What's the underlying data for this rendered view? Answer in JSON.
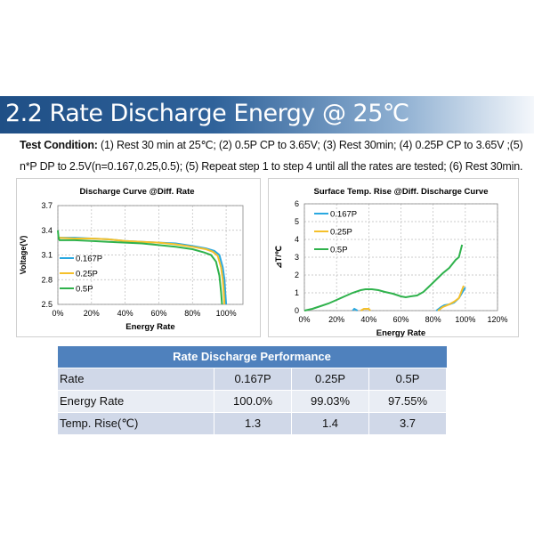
{
  "title": "2.2 Rate Discharge Energy @ 25℃",
  "condition": {
    "label": "Test Condition:",
    "line1": " (1) Rest 30 min at 25℃; (2) 0.5P CP to 3.65V; (3) Rest 30min; (4) 0.25P CP to 3.65V ;(5)",
    "line2": "n*P DP to 2.5V(n=0.167,0.25,0.5); (5) Repeat step 1 to step 4 until all the rates are tested; (6) Rest 30min."
  },
  "colors": {
    "0.167P": "#29a8e0",
    "0.25P": "#f5c02a",
    "0.5P": "#2fb24c"
  },
  "chart_data": [
    {
      "type": "line",
      "title": "Discharge Curve @Diff. Rate",
      "xlabel": "Energy Rate",
      "ylabel": "Voltage(V)",
      "xlim": [
        0,
        110
      ],
      "ylim": [
        2.5,
        3.7
      ],
      "xticks": [
        "0%",
        "20%",
        "40%",
        "60%",
        "80%",
        "100%"
      ],
      "yticks": [
        "2.5",
        "2.8",
        "3.1",
        "3.4",
        "3.7"
      ],
      "grid": true,
      "legend": "left",
      "series": [
        {
          "name": "0.167P",
          "x": [
            0,
            10,
            20,
            30,
            40,
            50,
            60,
            70,
            80,
            88,
            93,
            96,
            98,
            99,
            99.5,
            100
          ],
          "y": [
            3.31,
            3.31,
            3.3,
            3.29,
            3.27,
            3.26,
            3.25,
            3.24,
            3.21,
            3.18,
            3.15,
            3.1,
            2.95,
            2.8,
            2.65,
            2.5
          ]
        },
        {
          "name": "0.25P",
          "x": [
            0,
            10,
            20,
            30,
            40,
            50,
            60,
            70,
            80,
            88,
            92,
            95,
            97,
            98,
            98.6,
            99
          ],
          "y": [
            3.31,
            3.3,
            3.3,
            3.29,
            3.27,
            3.26,
            3.25,
            3.23,
            3.2,
            3.17,
            3.14,
            3.09,
            2.95,
            2.8,
            2.65,
            2.5
          ]
        },
        {
          "name": "0.5P",
          "x": [
            0,
            0.5,
            1,
            10,
            20,
            30,
            40,
            50,
            60,
            70,
            80,
            87,
            91,
            94,
            96,
            97,
            97.55
          ],
          "y": [
            3.4,
            3.3,
            3.28,
            3.28,
            3.27,
            3.26,
            3.25,
            3.24,
            3.22,
            3.2,
            3.17,
            3.13,
            3.1,
            3.02,
            2.85,
            2.65,
            2.5
          ]
        }
      ]
    },
    {
      "type": "line",
      "title": "Surface Temp. Rise @Diff. Discharge Curve",
      "xlabel": "Energy Rate",
      "ylabel": "⊿T/℃",
      "xlim": [
        0,
        120
      ],
      "ylim": [
        0,
        6
      ],
      "xticks": [
        "0%",
        "20%",
        "40%",
        "60%",
        "80%",
        "100%",
        "120%"
      ],
      "yticks": [
        "0",
        "1",
        "2",
        "3",
        "4",
        "5",
        "6"
      ],
      "grid": true,
      "legend": "top-left",
      "series": [
        {
          "name": "0.167P",
          "segments": [
            {
              "x": [
                30,
                31,
                33
              ],
              "y": [
                0,
                0.1,
                0
              ]
            },
            {
              "x": [
                82,
                85,
                87,
                90,
                93,
                96,
                100
              ],
              "y": [
                0,
                0.2,
                0.3,
                0.35,
                0.45,
                0.7,
                1.3
              ]
            }
          ]
        },
        {
          "name": "0.25P",
          "segments": [
            {
              "x": [
                35,
                37,
                40,
                41
              ],
              "y": [
                0,
                0.1,
                0.1,
                0
              ]
            },
            {
              "x": [
                83,
                86,
                90,
                93,
                96,
                99
              ],
              "y": [
                0,
                0.2,
                0.35,
                0.5,
                0.7,
                1.4
              ]
            }
          ]
        },
        {
          "name": "0.5P",
          "segments": [
            {
              "x": [
                0,
                5,
                10,
                15,
                20,
                25,
                30,
                35,
                38,
                42,
                46,
                50,
                55,
                60,
                63,
                66,
                70,
                74,
                78,
                82,
                86,
                90,
                94,
                96,
                98
              ],
              "y": [
                0,
                0.1,
                0.25,
                0.4,
                0.6,
                0.8,
                1.0,
                1.15,
                1.2,
                1.2,
                1.15,
                1.05,
                0.95,
                0.8,
                0.75,
                0.8,
                0.85,
                1.05,
                1.4,
                1.75,
                2.1,
                2.4,
                2.85,
                3.0,
                3.7
              ]
            }
          ]
        }
      ]
    }
  ],
  "table": {
    "title": "Rate Discharge Performance",
    "rows": [
      [
        "Rate",
        "0.167P",
        "0.25P",
        "0.5P"
      ],
      [
        "Energy Rate",
        "100.0%",
        "99.03%",
        "97.55%"
      ],
      [
        "Temp. Rise(℃)",
        "1.3",
        "1.4",
        "3.7"
      ]
    ]
  }
}
